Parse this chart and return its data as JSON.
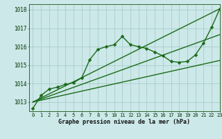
{
  "background_color": "#cce8e8",
  "plot_bg_color": "#cce8e8",
  "grid_color": "#aacccc",
  "line_color": "#1a6b1a",
  "title": "Graphe pression niveau de la mer (hPa)",
  "xlim": [
    -0.5,
    23
  ],
  "ylim": [
    1012.5,
    1018.3
  ],
  "yticks": [
    1013,
    1014,
    1015,
    1016,
    1017,
    1018
  ],
  "xticks": [
    0,
    1,
    2,
    3,
    4,
    5,
    6,
    7,
    8,
    9,
    10,
    11,
    12,
    13,
    14,
    15,
    16,
    17,
    18,
    19,
    20,
    21,
    22,
    23
  ],
  "series1_x": [
    0,
    1,
    2,
    3,
    4,
    5,
    6,
    7,
    8,
    9,
    10,
    11,
    12,
    13,
    14,
    15,
    16,
    17,
    18,
    19,
    20,
    21,
    22,
    23
  ],
  "series1_y": [
    1012.65,
    1013.35,
    1013.7,
    1013.8,
    1013.95,
    1014.05,
    1014.3,
    1015.3,
    1015.85,
    1016.0,
    1016.1,
    1016.55,
    1016.1,
    1016.0,
    1015.9,
    1015.7,
    1015.5,
    1015.2,
    1015.15,
    1015.2,
    1015.55,
    1016.2,
    1017.05,
    1018.05
  ],
  "series2_x": [
    0,
    23
  ],
  "series2_y": [
    1013.0,
    1018.05
  ],
  "series3_x": [
    0,
    23
  ],
  "series3_y": [
    1013.0,
    1016.65
  ],
  "series4_x": [
    0,
    23
  ],
  "series4_y": [
    1013.0,
    1015.25
  ],
  "tick_fontsize": 5,
  "label_fontsize": 6,
  "linewidth": 1.0,
  "markersize": 2.5
}
